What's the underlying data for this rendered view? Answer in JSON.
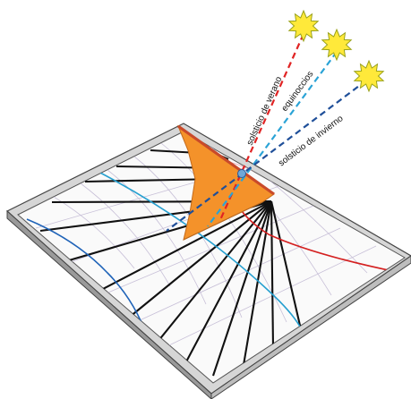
{
  "labels": {
    "summer": "solsticio de verano",
    "equinox": "equinoccios",
    "winter": "solsticio de invierno"
  },
  "colors": {
    "summer_ray": "#e02424",
    "equinox_ray": "#2aa3d6",
    "winter_ray": "#1f4f99",
    "gnomon": "#f4922a",
    "gnomon_edge": "#c94a2a",
    "hour_lines": "#111111",
    "sun_fill": "#ffe93a",
    "sun_stroke": "#9aa21a",
    "knot": "#6fa8d8"
  },
  "icons": [
    "sun-icon",
    "sun-icon",
    "sun-icon"
  ]
}
